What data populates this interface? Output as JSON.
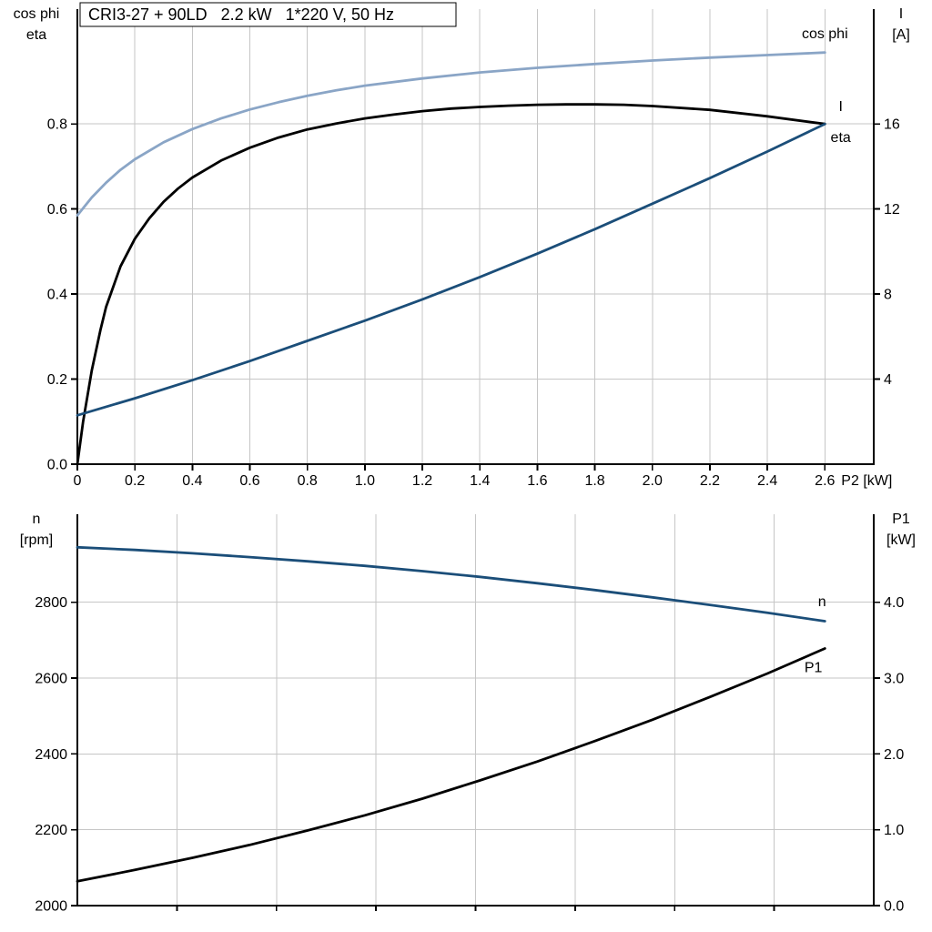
{
  "colors": {
    "cos_phi": "#8aa5c6",
    "current": "#1b4e79",
    "eta": "#000000",
    "speed": "#1b4e79",
    "p1": "#000000",
    "grid": "#c6c6c6",
    "axis": "#000000",
    "background": "#ffffff"
  },
  "chart_data": [
    {
      "type": "line",
      "title": "CRI3-27 + 90LD   2.2 kW   1*220 V, 50 Hz",
      "xlabel": "P2 [kW]",
      "ylabel_left": [
        "cos phi",
        "eta"
      ],
      "ylabel_right": [
        "I",
        "[A]"
      ],
      "xlim": [
        0,
        2.77
      ],
      "ylim_left": [
        0,
        1.07
      ],
      "ylim_right": [
        0,
        21.4
      ],
      "grid": true,
      "x_ticks": [
        {
          "v": 0,
          "label": "0"
        },
        {
          "v": 0.2,
          "label": "0.2"
        },
        {
          "v": 0.4,
          "label": "0.4"
        },
        {
          "v": 0.6,
          "label": "0.6"
        },
        {
          "v": 0.8,
          "label": "0.8"
        },
        {
          "v": 1.0,
          "label": "1.0"
        },
        {
          "v": 1.2,
          "label": "1.2"
        },
        {
          "v": 1.4,
          "label": "1.4"
        },
        {
          "v": 1.6,
          "label": "1.6"
        },
        {
          "v": 1.8,
          "label": "1.8"
        },
        {
          "v": 2.0,
          "label": "2.0"
        },
        {
          "v": 2.2,
          "label": "2.2"
        },
        {
          "v": 2.4,
          "label": "2.4"
        },
        {
          "v": 2.6,
          "label": "2.6"
        }
      ],
      "y_ticks_left": [
        {
          "v": 0.0,
          "label": "0.0"
        },
        {
          "v": 0.2,
          "label": "0.2"
        },
        {
          "v": 0.4,
          "label": "0.4"
        },
        {
          "v": 0.6,
          "label": "0.6"
        },
        {
          "v": 0.8,
          "label": "0.8"
        }
      ],
      "y_ticks_right": [
        {
          "v": 4,
          "label": "4"
        },
        {
          "v": 8,
          "label": "8"
        },
        {
          "v": 12,
          "label": "12"
        },
        {
          "v": 16,
          "label": "16"
        }
      ],
      "grid_x": [
        0.2,
        0.4,
        0.6,
        0.8,
        1.0,
        1.2,
        1.4,
        1.6,
        1.8,
        2.0,
        2.2,
        2.4,
        2.6
      ],
      "grid_y_left": [
        0.2,
        0.4,
        0.6,
        0.8
      ],
      "series": [
        {
          "name": "cos phi",
          "axis": "left",
          "color_key": "cos_phi",
          "label": {
            "text": "cos phi",
            "x": 2.6,
            "y": 1.002
          },
          "x": [
            0,
            0.05,
            0.1,
            0.15,
            0.2,
            0.3,
            0.4,
            0.5,
            0.6,
            0.7,
            0.8,
            0.9,
            1.0,
            1.2,
            1.4,
            1.6,
            1.8,
            2.0,
            2.2,
            2.4,
            2.6
          ],
          "y": [
            0.585,
            0.627,
            0.662,
            0.692,
            0.717,
            0.757,
            0.788,
            0.813,
            0.834,
            0.851,
            0.866,
            0.879,
            0.89,
            0.907,
            0.921,
            0.932,
            0.941,
            0.949,
            0.956,
            0.962,
            0.968
          ]
        },
        {
          "name": "eta",
          "axis": "left",
          "color_key": "eta",
          "label": {
            "text": "eta",
            "x": 2.655,
            "y": 0.758
          },
          "x": [
            0,
            0.02,
            0.05,
            0.08,
            0.1,
            0.15,
            0.2,
            0.25,
            0.3,
            0.35,
            0.4,
            0.5,
            0.6,
            0.7,
            0.8,
            0.9,
            1.0,
            1.1,
            1.2,
            1.3,
            1.4,
            1.5,
            1.6,
            1.7,
            1.8,
            1.9,
            2.0,
            2.2,
            2.4,
            2.6
          ],
          "y": [
            0,
            0.1,
            0.22,
            0.315,
            0.37,
            0.465,
            0.53,
            0.578,
            0.617,
            0.648,
            0.674,
            0.714,
            0.744,
            0.768,
            0.787,
            0.801,
            0.813,
            0.822,
            0.83,
            0.836,
            0.84,
            0.843,
            0.845,
            0.846,
            0.846,
            0.845,
            0.842,
            0.833,
            0.818,
            0.8
          ]
        },
        {
          "name": "I",
          "axis": "right",
          "color_key": "current",
          "label": {
            "text": "I",
            "x": 2.655,
            "y": 16.6
          },
          "x": [
            0,
            0.2,
            0.4,
            0.6,
            0.8,
            1.0,
            1.2,
            1.4,
            1.6,
            1.8,
            2.0,
            2.2,
            2.4,
            2.6
          ],
          "y": [
            2.3,
            3.1,
            3.95,
            4.85,
            5.8,
            6.75,
            7.75,
            8.8,
            9.9,
            11.05,
            12.25,
            13.45,
            14.7,
            16.0
          ]
        }
      ]
    },
    {
      "type": "line",
      "title": "",
      "xlabel": "",
      "ylabel_left": [
        "n",
        "[rpm]"
      ],
      "ylabel_right": [
        "P1",
        "[kW]"
      ],
      "xlim": [
        0,
        2.77
      ],
      "ylim_left": [
        2000,
        3032
      ],
      "ylim_right": [
        0,
        5.16
      ],
      "grid": true,
      "x_ticks": [],
      "y_ticks_left": [
        {
          "v": 2000,
          "label": "2000"
        },
        {
          "v": 2200,
          "label": "2200"
        },
        {
          "v": 2400,
          "label": "2400"
        },
        {
          "v": 2600,
          "label": "2600"
        },
        {
          "v": 2800,
          "label": "2800"
        }
      ],
      "y_ticks_right": [
        {
          "v": 0.0,
          "label": "0.0"
        },
        {
          "v": 1.0,
          "label": "1.0"
        },
        {
          "v": 2.0,
          "label": "2.0"
        },
        {
          "v": 3.0,
          "label": "3.0"
        },
        {
          "v": 4.0,
          "label": "4.0"
        }
      ],
      "grid_x": [
        0.3463,
        0.6925,
        1.0388,
        1.385,
        1.7313,
        2.0775,
        2.4238
      ],
      "grid_y_left": [
        2200,
        2400,
        2600,
        2800
      ],
      "series": [
        {
          "name": "n",
          "axis": "left",
          "color_key": "speed",
          "label": {
            "text": "n",
            "x": 2.59,
            "y": 2790
          },
          "x": [
            0,
            0.2,
            0.4,
            0.6,
            0.8,
            1.0,
            1.2,
            1.4,
            1.6,
            1.8,
            2.0,
            2.2,
            2.4,
            2.6
          ],
          "y": [
            2945,
            2938,
            2929,
            2919,
            2908,
            2896,
            2882,
            2867,
            2850,
            2832,
            2813,
            2793,
            2772,
            2750
          ]
        },
        {
          "name": "P1",
          "axis": "right",
          "color_key": "p1",
          "label": {
            "text": "P1",
            "x": 2.56,
            "y": 3.08
          },
          "x": [
            0,
            0.2,
            0.4,
            0.6,
            0.8,
            1.0,
            1.2,
            1.4,
            1.6,
            1.8,
            2.0,
            2.2,
            2.4,
            2.6
          ],
          "y": [
            0.32,
            0.47,
            0.63,
            0.8,
            0.99,
            1.19,
            1.41,
            1.65,
            1.9,
            2.17,
            2.45,
            2.75,
            3.06,
            3.39
          ]
        }
      ]
    }
  ]
}
